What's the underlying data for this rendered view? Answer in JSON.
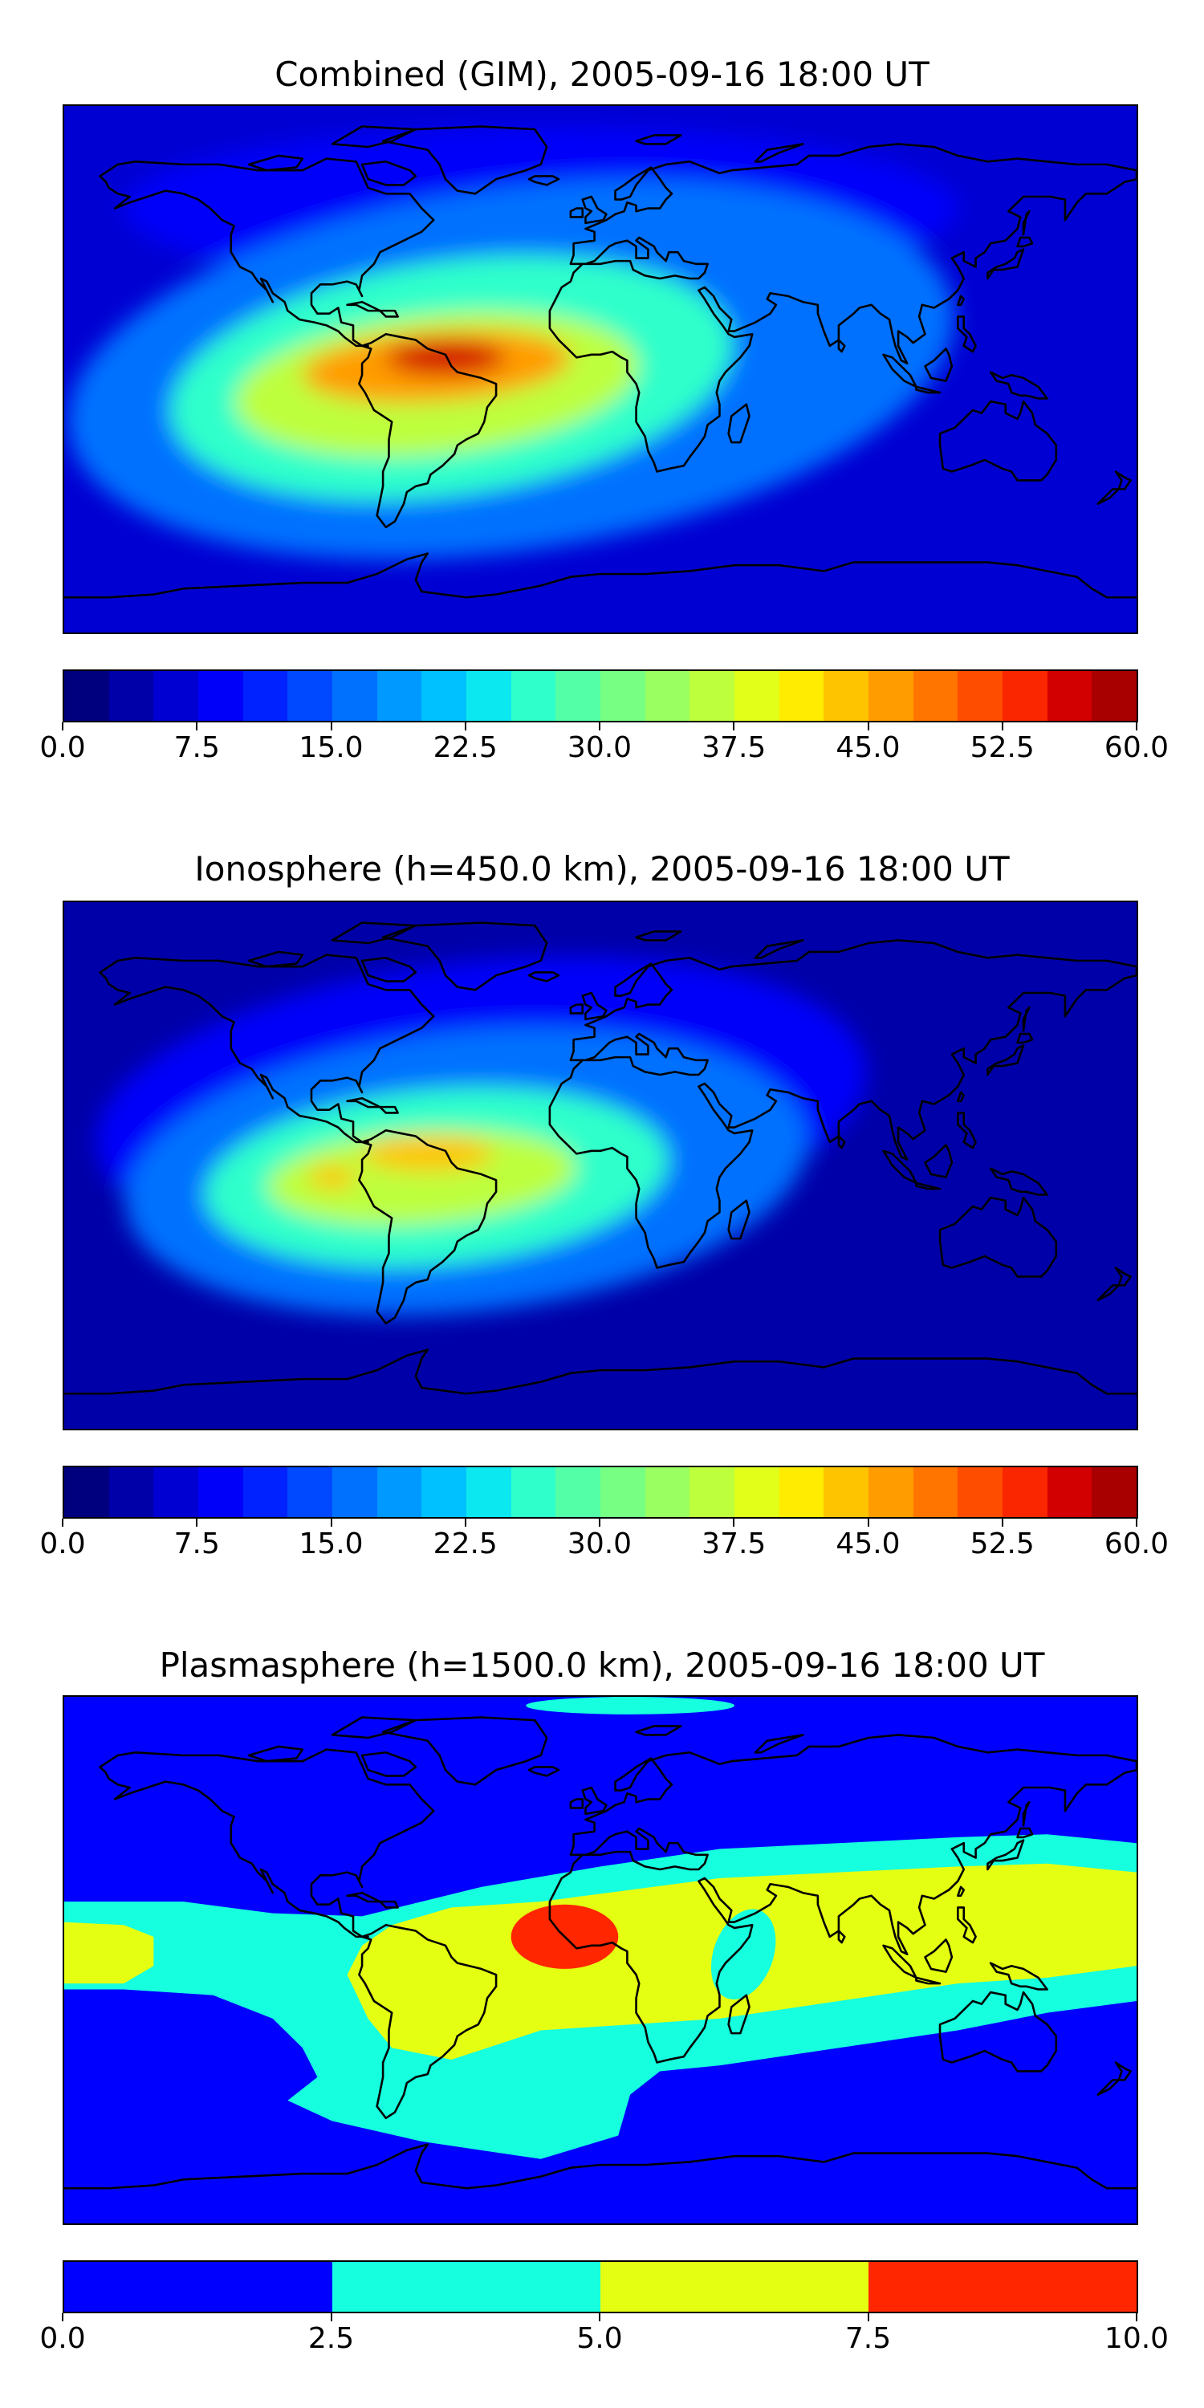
{
  "figure": {
    "panels": [
      {
        "id": "combined",
        "title": "Combined (GIM), 2005-09-16 18:00 UT",
        "colormap": "jet",
        "colorbar": {
          "range": [
            0.0,
            60.0
          ],
          "levels": 24,
          "tick_labels": [
            "0.0",
            "7.5",
            "15.0",
            "22.5",
            "30.0",
            "37.5",
            "45.0",
            "52.5",
            "60.0"
          ]
        },
        "features": [
          {
            "name": "background-low-tec",
            "value": 5
          },
          {
            "name": "northern-belt",
            "value": 8
          },
          {
            "name": "equatorial-anomaly-outer",
            "value": 15
          },
          {
            "name": "equatorial-anomaly-middle",
            "value": 25
          },
          {
            "name": "equatorial-anomaly-inner",
            "value": 37
          },
          {
            "name": "anomaly-core",
            "value": 47
          },
          {
            "name": "anomaly-peak",
            "value": 55
          }
        ]
      },
      {
        "id": "ionosphere",
        "title": "Ionosphere  (h=450.0 km), 2005-09-16 18:00 UT",
        "colormap": "jet",
        "colorbar": {
          "range": [
            0.0,
            60.0
          ],
          "levels": 24,
          "tick_labels": [
            "0.0",
            "7.5",
            "15.0",
            "22.5",
            "30.0",
            "37.5",
            "45.0",
            "52.5",
            "60.0"
          ]
        },
        "features": [
          {
            "name": "background-low-tec",
            "value": 3
          },
          {
            "name": "mid-latitude-belt",
            "value": 8
          },
          {
            "name": "equatorial-anomaly-outer",
            "value": 15
          },
          {
            "name": "equatorial-anomaly-middle",
            "value": 25
          },
          {
            "name": "equatorial-anomaly-inner",
            "value": 36
          },
          {
            "name": "anomaly-core",
            "value": 43
          }
        ]
      },
      {
        "id": "plasmasphere",
        "title": "Plasmasphere (h=1500.0 km), 2005-09-16 18:00 UT",
        "colormap": "jet",
        "colorbar": {
          "range": [
            0.0,
            10.0
          ],
          "levels": 4,
          "tick_labels": [
            "0.0",
            "2.5",
            "5.0",
            "7.5",
            "10.0"
          ]
        },
        "features": [
          {
            "name": "background",
            "value": 1.25
          },
          {
            "name": "low-latitude-band",
            "value": 3.75
          },
          {
            "name": "equatorial-band",
            "value": 6.25
          },
          {
            "name": "gulf-of-guinea-maximum",
            "value": 8.75
          }
        ]
      }
    ],
    "colors": {
      "jet24": [
        "#00007f",
        "#0000a8",
        "#0000d2",
        "#0000fa",
        "#0022ff",
        "#0049ff",
        "#0071ff",
        "#0099ff",
        "#00c1ff",
        "#0ce8f0",
        "#2fffcb",
        "#53ffa7",
        "#76ff83",
        "#9aff60",
        "#bdff3c",
        "#e1ff18",
        "#ffec00",
        "#ffc400",
        "#ff9c00",
        "#ff7500",
        "#ff4d00",
        "#fa2600",
        "#d20000",
        "#a80000"
      ],
      "jet4": [
        "#0000ff",
        "#16ffdf",
        "#e4ff12",
        "#ff2600"
      ],
      "coastline": "#000000"
    }
  }
}
